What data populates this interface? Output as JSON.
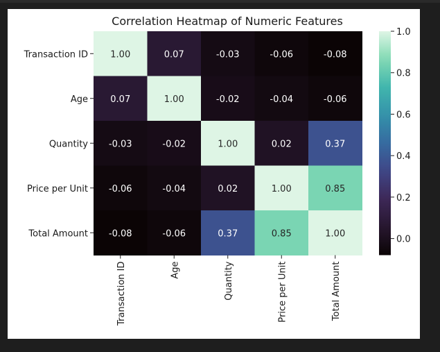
{
  "chart_data": {
    "type": "heatmap",
    "title": "Correlation Heatmap of Numeric Features",
    "xlabel": "",
    "ylabel": "",
    "row_labels": [
      "Transaction ID",
      "Age",
      "Quantity",
      "Price per Unit",
      "Total Amount"
    ],
    "col_labels": [
      "Transaction ID",
      "Age",
      "Quantity",
      "Price per Unit",
      "Total Amount"
    ],
    "values": [
      [
        1.0,
        0.07,
        -0.03,
        -0.06,
        -0.08
      ],
      [
        0.07,
        1.0,
        -0.02,
        -0.04,
        -0.06
      ],
      [
        -0.03,
        -0.02,
        1.0,
        0.02,
        0.37
      ],
      [
        -0.06,
        -0.04,
        0.02,
        1.0,
        0.85
      ],
      [
        -0.08,
        -0.06,
        0.37,
        0.85,
        1.0
      ]
    ],
    "annotation_format": "0.00",
    "colormap": "mako",
    "colorbar": {
      "vmin": -0.08,
      "vmax": 1.0,
      "ticks": [
        0.0,
        0.2,
        0.4,
        0.6,
        0.8,
        1.0
      ],
      "tick_labels": [
        "0.0",
        "0.2",
        "0.4",
        "0.6",
        "0.8",
        "1.0"
      ]
    }
  }
}
